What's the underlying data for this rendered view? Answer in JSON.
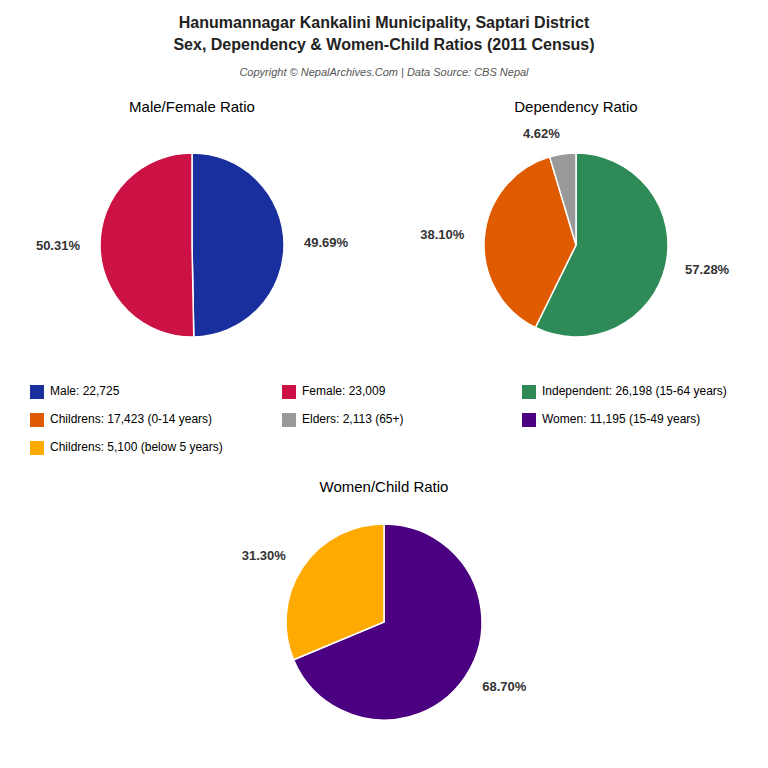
{
  "title": [
    "Hanumannagar Kankalini Municipality, Saptari District",
    "Sex, Dependency & Women-Child Ratios (2011 Census)"
  ],
  "subtitle": "Copyright © NepalArchives.Com | Data Source: CBS Nepal",
  "legend": "center",
  "chart_data": [
    {
      "type": "pie",
      "title": "Male/Female Ratio",
      "categories": [
        "Male: 22,725",
        "Female: 23,009"
      ],
      "values": [
        49.69,
        50.31
      ],
      "value_labels": [
        "49.69%",
        "50.31%"
      ],
      "colors": [
        "#1a2f9e",
        "#cc1144"
      ],
      "data_labels": true
    },
    {
      "type": "pie",
      "title": "Dependency Ratio",
      "categories": [
        "Independent: 26,198 (15-64 years)",
        "Childrens: 17,423 (0-14 years)",
        "Elders: 2,113 (65+)"
      ],
      "values": [
        57.28,
        38.1,
        4.62
      ],
      "value_labels": [
        "57.28%",
        "38.10%",
        "4.62%"
      ],
      "colors": [
        "#2e8b57",
        "#e05a00",
        "#999999"
      ],
      "data_labels": true
    },
    {
      "type": "pie",
      "title": "Women/Child Ratio",
      "categories": [
        "Women: 11,195 (15-49 years)",
        "Childrens: 5,100 (below 5 years)"
      ],
      "values": [
        68.7,
        31.3
      ],
      "value_labels": [
        "68.70%",
        "31.30%"
      ],
      "colors": [
        "#4a0080",
        "#ffaa00"
      ],
      "data_labels": true
    }
  ]
}
